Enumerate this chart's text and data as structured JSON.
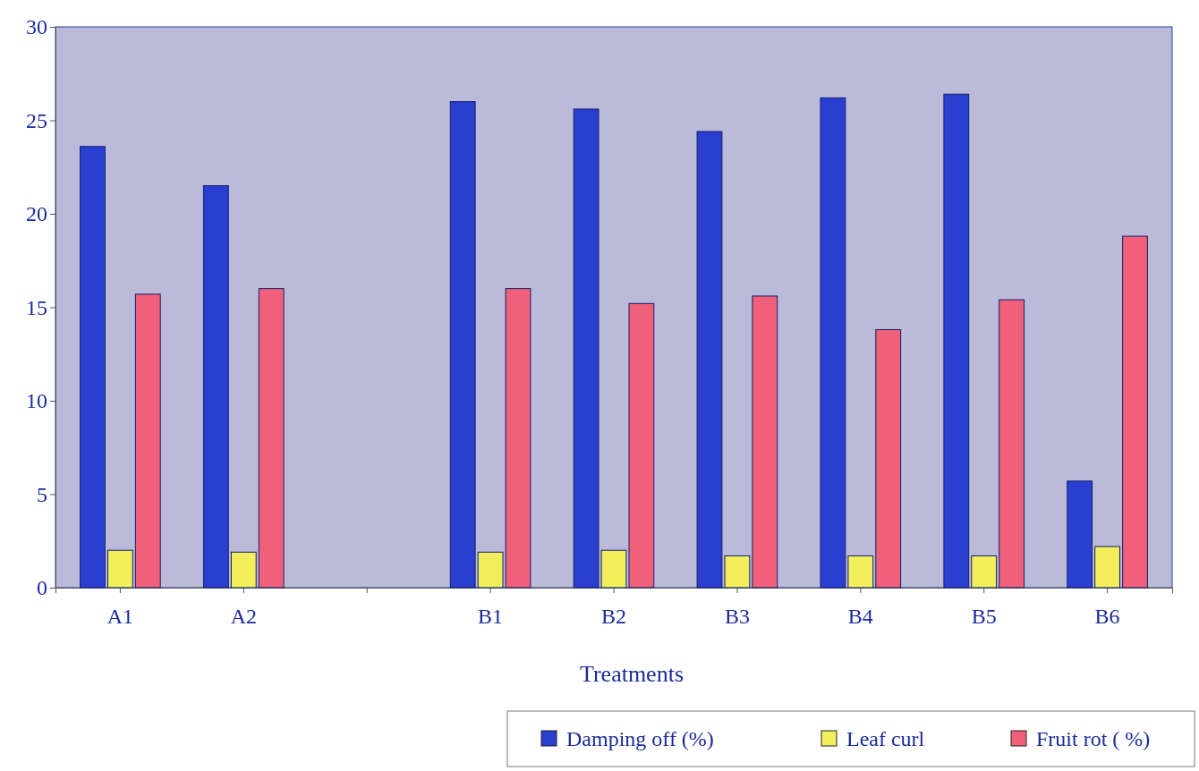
{
  "chart_data": {
    "type": "bar",
    "xlabel": "Treatments",
    "categories": [
      "A1",
      "A2",
      null,
      "B1",
      "B2",
      "B3",
      "B4",
      "B5",
      "B6"
    ],
    "series": [
      {
        "name": "Damping off (%)",
        "color": "#2a3fd0",
        "values": [
          23.6,
          21.5,
          null,
          26.0,
          25.6,
          24.4,
          26.2,
          26.4,
          5.7
        ]
      },
      {
        "name": "Leaf curl",
        "color": "#f2ee5c",
        "values": [
          2.0,
          1.9,
          null,
          1.9,
          2.0,
          1.7,
          1.7,
          1.7,
          2.2
        ]
      },
      {
        "name": "Fruit rot ( %)",
        "color": "#f0607a",
        "values": [
          15.7,
          16.0,
          null,
          16.0,
          15.2,
          15.6,
          13.8,
          15.4,
          18.8
        ]
      }
    ],
    "ylim": [
      0,
      30
    ],
    "yticks": [
      0,
      5,
      10,
      15,
      20,
      25,
      30
    ],
    "grid": false,
    "legend": "bottom right"
  }
}
